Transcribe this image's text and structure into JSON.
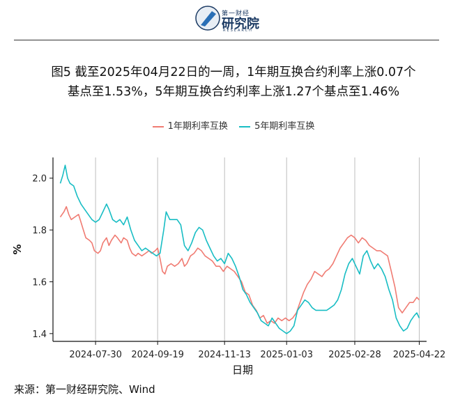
{
  "header": {
    "logo_text_top": "第一财经",
    "logo_text_main": "研究院",
    "logo_text_sub": "RESEARCH"
  },
  "title_line1": "图5  截至2025年04月22日的一周，1年期互换合约利率上涨0.07个",
  "title_line2": "基点至1.53%，5年期互换合约利率上涨1.27个基点至1.46%",
  "source": "来源：第一财经研究院、Wind",
  "chart_data": {
    "type": "line",
    "xlabel": "日期",
    "ylabel": "%",
    "ylim": [
      1.37,
      2.08
    ],
    "xlim": [
      "2024-06-25",
      "2025-04-28"
    ],
    "x_ticks": [
      "2024-07-30",
      "2024-09-19",
      "2024-11-13",
      "2025-01-03",
      "2025-02-28",
      "2025-04-22"
    ],
    "y_ticks": [
      1.4,
      1.6,
      1.8,
      2.0
    ],
    "y_tick_labels": [
      "1.4",
      "1.6",
      "1.8",
      "2.0"
    ],
    "legend_position": "top",
    "grid": "vertical lines at x ticks",
    "series": [
      {
        "name": "1年期利率互换",
        "color": "#F07B72",
        "points": [
          [
            "2024-07-01",
            1.85
          ],
          [
            "2024-07-04",
            1.87
          ],
          [
            "2024-07-06",
            1.89
          ],
          [
            "2024-07-08",
            1.86
          ],
          [
            "2024-07-10",
            1.84
          ],
          [
            "2024-07-13",
            1.85
          ],
          [
            "2024-07-16",
            1.86
          ],
          [
            "2024-07-18",
            1.83
          ],
          [
            "2024-07-20",
            1.8
          ],
          [
            "2024-07-22",
            1.77
          ],
          [
            "2024-07-25",
            1.76
          ],
          [
            "2024-07-27",
            1.75
          ],
          [
            "2024-07-29",
            1.72
          ],
          [
            "2024-08-01",
            1.71
          ],
          [
            "2024-08-03",
            1.72
          ],
          [
            "2024-08-05",
            1.75
          ],
          [
            "2024-08-08",
            1.77
          ],
          [
            "2024-08-10",
            1.74
          ],
          [
            "2024-08-12",
            1.76
          ],
          [
            "2024-08-15",
            1.78
          ],
          [
            "2024-08-17",
            1.77
          ],
          [
            "2024-08-20",
            1.75
          ],
          [
            "2024-08-22",
            1.77
          ],
          [
            "2024-08-25",
            1.76
          ],
          [
            "2024-08-27",
            1.73
          ],
          [
            "2024-08-29",
            1.71
          ],
          [
            "2024-09-01",
            1.7
          ],
          [
            "2024-09-03",
            1.71
          ],
          [
            "2024-09-06",
            1.7
          ],
          [
            "2024-09-09",
            1.71
          ],
          [
            "2024-09-12",
            1.72
          ],
          [
            "2024-09-14",
            1.71
          ],
          [
            "2024-09-17",
            1.72
          ],
          [
            "2024-09-19",
            1.73
          ],
          [
            "2024-09-21",
            1.69
          ],
          [
            "2024-09-23",
            1.64
          ],
          [
            "2024-09-25",
            1.63
          ],
          [
            "2024-09-27",
            1.66
          ],
          [
            "2024-09-30",
            1.67
          ],
          [
            "2024-10-03",
            1.66
          ],
          [
            "2024-10-06",
            1.67
          ],
          [
            "2024-10-09",
            1.69
          ],
          [
            "2024-10-11",
            1.66
          ],
          [
            "2024-10-13",
            1.67
          ],
          [
            "2024-10-16",
            1.7
          ],
          [
            "2024-10-19",
            1.71
          ],
          [
            "2024-10-22",
            1.73
          ],
          [
            "2024-10-25",
            1.72
          ],
          [
            "2024-10-28",
            1.7
          ],
          [
            "2024-10-31",
            1.69
          ],
          [
            "2024-11-03",
            1.68
          ],
          [
            "2024-11-06",
            1.66
          ],
          [
            "2024-11-09",
            1.66
          ],
          [
            "2024-11-12",
            1.64
          ],
          [
            "2024-11-15",
            1.66
          ],
          [
            "2024-11-18",
            1.65
          ],
          [
            "2024-11-21",
            1.64
          ],
          [
            "2024-11-24",
            1.62
          ],
          [
            "2024-11-27",
            1.6
          ],
          [
            "2024-11-30",
            1.56
          ],
          [
            "2024-12-03",
            1.55
          ],
          [
            "2024-12-06",
            1.51
          ],
          [
            "2024-12-09",
            1.49
          ],
          [
            "2024-12-12",
            1.46
          ],
          [
            "2024-12-15",
            1.47
          ],
          [
            "2024-12-18",
            1.44
          ],
          [
            "2024-12-21",
            1.45
          ],
          [
            "2024-12-24",
            1.44
          ],
          [
            "2024-12-27",
            1.46
          ],
          [
            "2024-12-30",
            1.45
          ],
          [
            "2025-01-02",
            1.46
          ],
          [
            "2025-01-05",
            1.45
          ],
          [
            "2025-01-08",
            1.46
          ],
          [
            "2025-01-11",
            1.48
          ],
          [
            "2025-01-14",
            1.52
          ],
          [
            "2025-01-17",
            1.56
          ],
          [
            "2025-01-20",
            1.59
          ],
          [
            "2025-01-23",
            1.61
          ],
          [
            "2025-01-26",
            1.64
          ],
          [
            "2025-01-29",
            1.63
          ],
          [
            "2025-02-01",
            1.62
          ],
          [
            "2025-02-04",
            1.64
          ],
          [
            "2025-02-07",
            1.65
          ],
          [
            "2025-02-10",
            1.67
          ],
          [
            "2025-02-13",
            1.7
          ],
          [
            "2025-02-16",
            1.73
          ],
          [
            "2025-02-19",
            1.75
          ],
          [
            "2025-02-22",
            1.77
          ],
          [
            "2025-02-25",
            1.78
          ],
          [
            "2025-02-28",
            1.77
          ],
          [
            "2025-03-03",
            1.75
          ],
          [
            "2025-03-06",
            1.77
          ],
          [
            "2025-03-09",
            1.76
          ],
          [
            "2025-03-12",
            1.74
          ],
          [
            "2025-03-15",
            1.73
          ],
          [
            "2025-03-18",
            1.72
          ],
          [
            "2025-03-21",
            1.72
          ],
          [
            "2025-03-24",
            1.71
          ],
          [
            "2025-03-27",
            1.7
          ],
          [
            "2025-03-30",
            1.64
          ],
          [
            "2025-04-02",
            1.58
          ],
          [
            "2025-04-05",
            1.5
          ],
          [
            "2025-04-08",
            1.48
          ],
          [
            "2025-04-11",
            1.5
          ],
          [
            "2025-04-14",
            1.52
          ],
          [
            "2025-04-17",
            1.52
          ],
          [
            "2025-04-20",
            1.54
          ],
          [
            "2025-04-22",
            1.53
          ]
        ]
      },
      {
        "name": "5年期利率互换",
        "color": "#18BDC4",
        "points": [
          [
            "2024-07-01",
            1.98
          ],
          [
            "2024-07-03",
            2.01
          ],
          [
            "2024-07-05",
            2.05
          ],
          [
            "2024-07-07",
            2.0
          ],
          [
            "2024-07-09",
            1.98
          ],
          [
            "2024-07-12",
            1.97
          ],
          [
            "2024-07-15",
            1.93
          ],
          [
            "2024-07-18",
            1.9
          ],
          [
            "2024-07-21",
            1.88
          ],
          [
            "2024-07-24",
            1.86
          ],
          [
            "2024-07-27",
            1.84
          ],
          [
            "2024-07-30",
            1.83
          ],
          [
            "2024-08-02",
            1.84
          ],
          [
            "2024-08-05",
            1.87
          ],
          [
            "2024-08-08",
            1.9
          ],
          [
            "2024-08-10",
            1.88
          ],
          [
            "2024-08-13",
            1.84
          ],
          [
            "2024-08-16",
            1.83
          ],
          [
            "2024-08-19",
            1.84
          ],
          [
            "2024-08-22",
            1.82
          ],
          [
            "2024-08-25",
            1.85
          ],
          [
            "2024-08-28",
            1.8
          ],
          [
            "2024-08-31",
            1.76
          ],
          [
            "2024-09-03",
            1.74
          ],
          [
            "2024-09-06",
            1.72
          ],
          [
            "2024-09-09",
            1.73
          ],
          [
            "2024-09-12",
            1.72
          ],
          [
            "2024-09-15",
            1.71
          ],
          [
            "2024-09-18",
            1.7
          ],
          [
            "2024-09-21",
            1.71
          ],
          [
            "2024-09-24",
            1.8
          ],
          [
            "2024-09-26",
            1.87
          ],
          [
            "2024-09-29",
            1.84
          ],
          [
            "2024-10-02",
            1.84
          ],
          [
            "2024-10-05",
            1.84
          ],
          [
            "2024-10-08",
            1.82
          ],
          [
            "2024-10-11",
            1.74
          ],
          [
            "2024-10-14",
            1.72
          ],
          [
            "2024-10-17",
            1.75
          ],
          [
            "2024-10-20",
            1.79
          ],
          [
            "2024-10-23",
            1.81
          ],
          [
            "2024-10-26",
            1.8
          ],
          [
            "2024-10-29",
            1.76
          ],
          [
            "2024-11-01",
            1.73
          ],
          [
            "2024-11-04",
            1.7
          ],
          [
            "2024-11-07",
            1.68
          ],
          [
            "2024-11-10",
            1.69
          ],
          [
            "2024-11-13",
            1.67
          ],
          [
            "2024-11-16",
            1.71
          ],
          [
            "2024-11-19",
            1.69
          ],
          [
            "2024-11-22",
            1.66
          ],
          [
            "2024-11-25",
            1.62
          ],
          [
            "2024-11-28",
            1.57
          ],
          [
            "2024-12-01",
            1.55
          ],
          [
            "2024-12-04",
            1.52
          ],
          [
            "2024-12-07",
            1.5
          ],
          [
            "2024-12-10",
            1.48
          ],
          [
            "2024-12-13",
            1.45
          ],
          [
            "2024-12-16",
            1.44
          ],
          [
            "2024-12-19",
            1.43
          ],
          [
            "2024-12-22",
            1.46
          ],
          [
            "2024-12-25",
            1.44
          ],
          [
            "2024-12-28",
            1.42
          ],
          [
            "2024-12-31",
            1.41
          ],
          [
            "2025-01-03",
            1.4
          ],
          [
            "2025-01-06",
            1.41
          ],
          [
            "2025-01-09",
            1.43
          ],
          [
            "2025-01-12",
            1.49
          ],
          [
            "2025-01-15",
            1.51
          ],
          [
            "2025-01-18",
            1.53
          ],
          [
            "2025-01-21",
            1.52
          ],
          [
            "2025-01-24",
            1.5
          ],
          [
            "2025-01-27",
            1.49
          ],
          [
            "2025-01-30",
            1.49
          ],
          [
            "2025-02-02",
            1.49
          ],
          [
            "2025-02-05",
            1.49
          ],
          [
            "2025-02-08",
            1.5
          ],
          [
            "2025-02-11",
            1.51
          ],
          [
            "2025-02-14",
            1.53
          ],
          [
            "2025-02-17",
            1.57
          ],
          [
            "2025-02-20",
            1.63
          ],
          [
            "2025-02-23",
            1.67
          ],
          [
            "2025-02-26",
            1.69
          ],
          [
            "2025-03-01",
            1.66
          ],
          [
            "2025-03-04",
            1.63
          ],
          [
            "2025-03-07",
            1.7
          ],
          [
            "2025-03-10",
            1.72
          ],
          [
            "2025-03-13",
            1.68
          ],
          [
            "2025-03-16",
            1.65
          ],
          [
            "2025-03-19",
            1.67
          ],
          [
            "2025-03-22",
            1.65
          ],
          [
            "2025-03-25",
            1.62
          ],
          [
            "2025-03-28",
            1.57
          ],
          [
            "2025-03-31",
            1.53
          ],
          [
            "2025-04-03",
            1.46
          ],
          [
            "2025-04-06",
            1.43
          ],
          [
            "2025-04-09",
            1.41
          ],
          [
            "2025-04-12",
            1.42
          ],
          [
            "2025-04-15",
            1.45
          ],
          [
            "2025-04-18",
            1.47
          ],
          [
            "2025-04-20",
            1.48
          ],
          [
            "2025-04-22",
            1.46
          ]
        ]
      }
    ]
  }
}
